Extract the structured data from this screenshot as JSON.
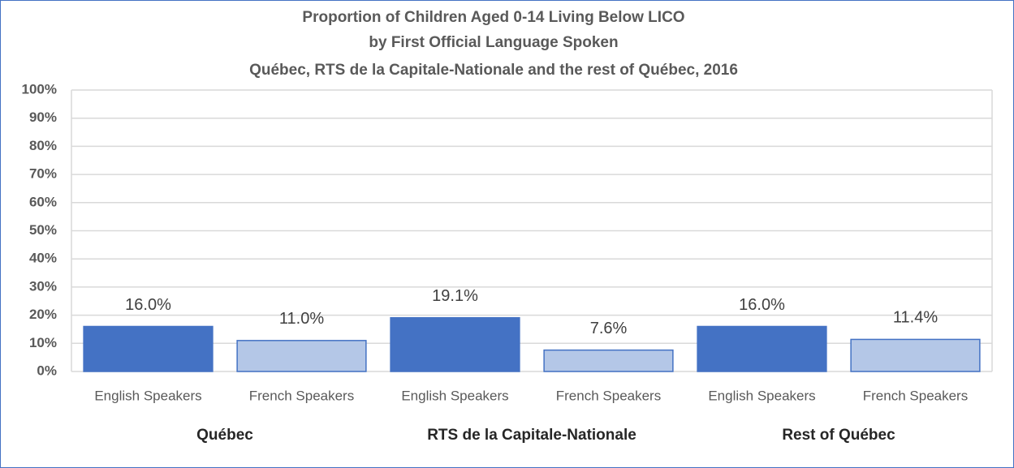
{
  "chart_data": {
    "type": "bar",
    "title": [
      "Proportion of Children Aged 0-14 Living Below LICO",
      "by First Official Language Spoken",
      "Québec, RTS de la Capitale-Nationale and the rest of Québec, 2016"
    ],
    "categories": [
      "English Speakers",
      "French Speakers",
      "English Speakers",
      "French Speakers",
      "English Speakers",
      "French Speakers"
    ],
    "groups": [
      "Québec",
      "RTS de la Capitale-Nationale",
      "Rest of Québec"
    ],
    "values": [
      16.0,
      11.0,
      19.1,
      7.6,
      16.0,
      11.4
    ],
    "value_labels": [
      "16.0%",
      "11.0%",
      "19.1%",
      "7.6%",
      "16.0%",
      "11.4%"
    ],
    "colors": [
      "#4472c4",
      "#b4c7e7",
      "#4472c4",
      "#b4c7e7",
      "#4472c4",
      "#b4c7e7"
    ],
    "ylim": [
      0,
      100
    ],
    "yticks": [
      {
        "value": 0,
        "label": "0%"
      },
      {
        "value": 10,
        "label": "10%"
      },
      {
        "value": 20,
        "label": "20%"
      },
      {
        "value": 30,
        "label": "30%"
      },
      {
        "value": 40,
        "label": "40%"
      },
      {
        "value": 50,
        "label": "50%"
      },
      {
        "value": 60,
        "label": "60%"
      },
      {
        "value": 70,
        "label": "70%"
      },
      {
        "value": 80,
        "label": "80%"
      },
      {
        "value": 90,
        "label": "90%"
      },
      {
        "value": 100,
        "label": "100%"
      }
    ],
    "grid": true
  }
}
